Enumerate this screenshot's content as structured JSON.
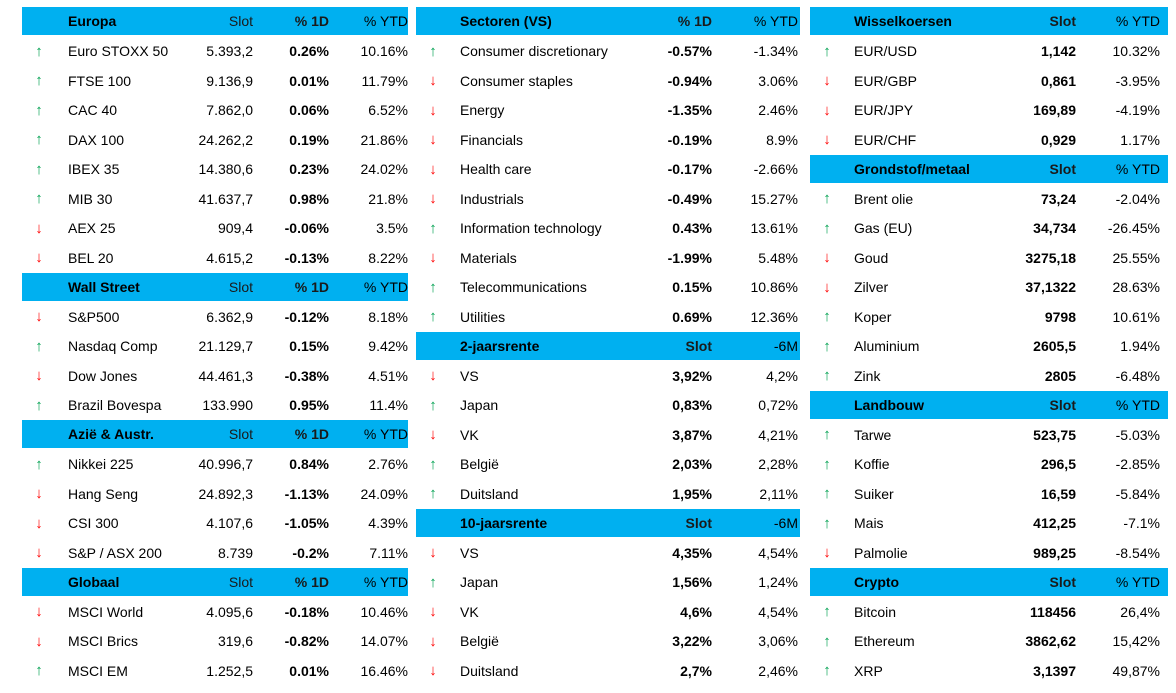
{
  "colors": {
    "header_bg": "#00b0f0",
    "arrow_up": "#00a050",
    "arrow_down": "#ff0000"
  },
  "icons": {
    "up": "arrow-up-icon",
    "down": "arrow-down-icon"
  },
  "columns": [
    {
      "sections": [
        {
          "header": [
            "Europa",
            "Slot",
            "% 1D",
            "% YTD"
          ],
          "rows": [
            {
              "dir": "up",
              "name": "Euro STOXX 50",
              "v1": "5.393,2",
              "v2": "0.26%",
              "v3": "10.16%"
            },
            {
              "dir": "up",
              "name": "FTSE 100",
              "v1": "9.136,9",
              "v2": "0.01%",
              "v3": "11.79%"
            },
            {
              "dir": "up",
              "name": "CAC 40",
              "v1": "7.862,0",
              "v2": "0.06%",
              "v3": "6.52%"
            },
            {
              "dir": "up",
              "name": "DAX 100",
              "v1": "24.262,2",
              "v2": "0.19%",
              "v3": "21.86%"
            },
            {
              "dir": "up",
              "name": "IBEX 35",
              "v1": "14.380,6",
              "v2": "0.23%",
              "v3": "24.02%"
            },
            {
              "dir": "up",
              "name": "MIB 30",
              "v1": "41.637,7",
              "v2": "0.98%",
              "v3": "21.8%"
            },
            {
              "dir": "down",
              "name": "AEX 25",
              "v1": "909,4",
              "v2": "-0.06%",
              "v3": "3.5%"
            },
            {
              "dir": "down",
              "name": "BEL 20",
              "v1": "4.615,2",
              "v2": "-0.13%",
              "v3": "8.22%"
            }
          ]
        },
        {
          "header": [
            "Wall Street",
            "Slot",
            "% 1D",
            "% YTD"
          ],
          "rows": [
            {
              "dir": "down",
              "name": "S&P500",
              "v1": "6.362,9",
              "v2": "-0.12%",
              "v3": "8.18%"
            },
            {
              "dir": "up",
              "name": "Nasdaq Comp",
              "v1": "21.129,7",
              "v2": "0.15%",
              "v3": "9.42%"
            },
            {
              "dir": "down",
              "name": "Dow Jones",
              "v1": "44.461,3",
              "v2": "-0.38%",
              "v3": "4.51%"
            },
            {
              "dir": "up",
              "name": "Brazil Bovespa",
              "v1": "133.990",
              "v2": "0.95%",
              "v3": "11.4%"
            }
          ]
        },
        {
          "header": [
            "Azië & Austr.",
            "Slot",
            "% 1D",
            "% YTD"
          ],
          "rows": [
            {
              "dir": "up",
              "name": "Nikkei 225",
              "v1": "40.996,7",
              "v2": "0.84%",
              "v3": "2.76%"
            },
            {
              "dir": "down",
              "name": "Hang Seng",
              "v1": "24.892,3",
              "v2": "-1.13%",
              "v3": "24.09%"
            },
            {
              "dir": "down",
              "name": "CSI 300",
              "v1": "4.107,6",
              "v2": "-1.05%",
              "v3": "4.39%"
            },
            {
              "dir": "down",
              "name": "S&P / ASX 200",
              "v1": "8.739",
              "v2": "-0.2%",
              "v3": "7.11%"
            }
          ]
        },
        {
          "header": [
            "Globaal",
            "Slot",
            "% 1D",
            "% YTD"
          ],
          "rows": [
            {
              "dir": "down",
              "name": "MSCI World",
              "v1": "4.095,6",
              "v2": "-0.18%",
              "v3": "10.46%"
            },
            {
              "dir": "down",
              "name": "MSCI Brics",
              "v1": "319,6",
              "v2": "-0.82%",
              "v3": "14.07%"
            },
            {
              "dir": "up",
              "name": "MSCI EM",
              "v1": "1.252,5",
              "v2": "0.01%",
              "v3": "16.46%"
            }
          ]
        }
      ]
    },
    {
      "sections": [
        {
          "header": [
            "Sectoren (VS)",
            "",
            "% 1D",
            "% YTD"
          ],
          "rows": [
            {
              "dir": "up",
              "name": "Consumer discretionary",
              "v1": "",
              "v2": "-0.57%",
              "v3": "-1.34%"
            },
            {
              "dir": "down",
              "name": "Consumer staples",
              "v1": "",
              "v2": "-0.94%",
              "v3": "3.06%"
            },
            {
              "dir": "down",
              "name": "Energy",
              "v1": "",
              "v2": "-1.35%",
              "v3": "2.46%"
            },
            {
              "dir": "down",
              "name": "Financials",
              "v1": "",
              "v2": "-0.19%",
              "v3": "8.9%"
            },
            {
              "dir": "down",
              "name": "Health care",
              "v1": "",
              "v2": "-0.17%",
              "v3": "-2.66%"
            },
            {
              "dir": "down",
              "name": "Industrials",
              "v1": "",
              "v2": "-0.49%",
              "v3": "15.27%"
            },
            {
              "dir": "up",
              "name": "Information technology",
              "v1": "",
              "v2": "0.43%",
              "v3": "13.61%"
            },
            {
              "dir": "down",
              "name": "Materials",
              "v1": "",
              "v2": "-1.99%",
              "v3": "5.48%"
            },
            {
              "dir": "up",
              "name": "Telecommunications",
              "v1": "",
              "v2": "0.15%",
              "v3": "10.86%"
            },
            {
              "dir": "up",
              "name": "Utilities",
              "v1": "",
              "v2": "0.69%",
              "v3": "12.36%"
            }
          ]
        },
        {
          "header": [
            "2-jaarsrente",
            "",
            "Slot",
            "-6M"
          ],
          "rows": [
            {
              "dir": "down",
              "name": "VS",
              "v1": "",
              "v2": "3,92%",
              "v3": "4,2%"
            },
            {
              "dir": "up",
              "name": "Japan",
              "v1": "",
              "v2": "0,83%",
              "v3": "0,72%"
            },
            {
              "dir": "down",
              "name": "VK",
              "v1": "",
              "v2": "3,87%",
              "v3": "4,21%"
            },
            {
              "dir": "up",
              "name": "België",
              "v1": "",
              "v2": "2,03%",
              "v3": "2,28%"
            },
            {
              "dir": "up",
              "name": "Duitsland",
              "v1": "",
              "v2": "1,95%",
              "v3": "2,11%"
            }
          ]
        },
        {
          "header": [
            "10-jaarsrente",
            "",
            "Slot",
            "-6M"
          ],
          "rows": [
            {
              "dir": "down",
              "name": "VS",
              "v1": "",
              "v2": "4,35%",
              "v3": "4,54%"
            },
            {
              "dir": "up",
              "name": "Japan",
              "v1": "",
              "v2": "1,56%",
              "v3": "1,24%"
            },
            {
              "dir": "down",
              "name": "VK",
              "v1": "",
              "v2": "4,6%",
              "v3": "4,54%"
            },
            {
              "dir": "down",
              "name": "België",
              "v1": "",
              "v2": "3,22%",
              "v3": "3,06%"
            },
            {
              "dir": "down",
              "name": "Duitsland",
              "v1": "",
              "v2": "2,7%",
              "v3": "2,46%"
            }
          ]
        }
      ]
    },
    {
      "sections": [
        {
          "header": [
            "Wisselkoersen",
            "",
            "Slot",
            "% YTD"
          ],
          "rows": [
            {
              "dir": "up",
              "name": "EUR/USD",
              "v1": "",
              "v2": "1,142",
              "v3": "10.32%"
            },
            {
              "dir": "down",
              "name": "EUR/GBP",
              "v1": "",
              "v2": "0,861",
              "v3": "-3.95%"
            },
            {
              "dir": "down",
              "name": "EUR/JPY",
              "v1": "",
              "v2": "169,89",
              "v3": "-4.19%"
            },
            {
              "dir": "down",
              "name": "EUR/CHF",
              "v1": "",
              "v2": "0,929",
              "v3": "1.17%"
            }
          ]
        },
        {
          "header": [
            "Grondstof/metaal",
            "",
            "Slot",
            "% YTD"
          ],
          "rows": [
            {
              "dir": "up",
              "name": "Brent olie",
              "v1": "",
              "v2": "73,24",
              "v3": "-2.04%"
            },
            {
              "dir": "up",
              "name": "Gas (EU)",
              "v1": "",
              "v2": "34,734",
              "v3": "-26.45%"
            },
            {
              "dir": "down",
              "name": "Goud",
              "v1": "",
              "v2": "3275,18",
              "v3": "25.55%"
            },
            {
              "dir": "down",
              "name": "Zilver",
              "v1": "",
              "v2": "37,1322",
              "v3": "28.63%"
            },
            {
              "dir": "up",
              "name": "Koper",
              "v1": "",
              "v2": "9798",
              "v3": "10.61%"
            },
            {
              "dir": "up",
              "name": "Aluminium",
              "v1": "",
              "v2": "2605,5",
              "v3": "1.94%"
            },
            {
              "dir": "up",
              "name": "Zink",
              "v1": "",
              "v2": "2805",
              "v3": "-6.48%"
            }
          ]
        },
        {
          "header": [
            "Landbouw",
            "",
            "Slot",
            "% YTD"
          ],
          "rows": [
            {
              "dir": "up",
              "name": "Tarwe",
              "v1": "",
              "v2": "523,75",
              "v3": "-5.03%"
            },
            {
              "dir": "up",
              "name": "Koffie",
              "v1": "",
              "v2": "296,5",
              "v3": "-2.85%"
            },
            {
              "dir": "up",
              "name": "Suiker",
              "v1": "",
              "v2": "16,59",
              "v3": "-5.84%"
            },
            {
              "dir": "up",
              "name": "Mais",
              "v1": "",
              "v2": "412,25",
              "v3": "-7.1%"
            },
            {
              "dir": "down",
              "name": "Palmolie",
              "v1": "",
              "v2": "989,25",
              "v3": "-8.54%"
            }
          ]
        },
        {
          "header": [
            "Crypto",
            "",
            "Slot",
            "% YTD"
          ],
          "rows": [
            {
              "dir": "up",
              "name": "Bitcoin",
              "v1": "",
              "v2": "118456",
              "v3": "26,4%"
            },
            {
              "dir": "up",
              "name": "Ethereum",
              "v1": "",
              "v2": "3862,62",
              "v3": "15,42%"
            },
            {
              "dir": "up",
              "name": "XRP",
              "v1": "",
              "v2": "3,1397",
              "v3": "49,87%"
            }
          ]
        }
      ]
    }
  ]
}
